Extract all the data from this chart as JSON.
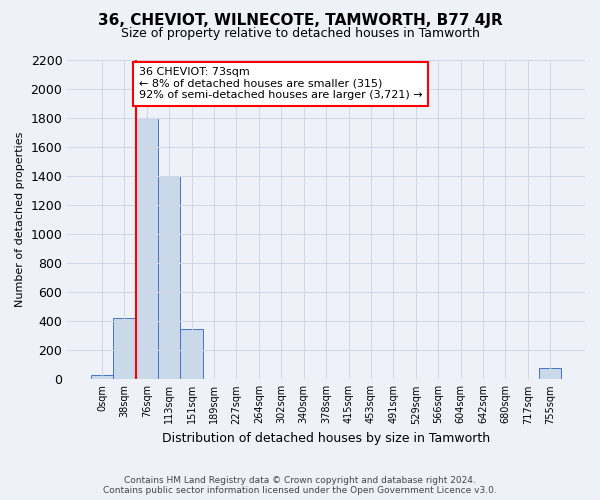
{
  "title": "36, CHEVIOT, WILNECOTE, TAMWORTH, B77 4JR",
  "subtitle": "Size of property relative to detached houses in Tamworth",
  "xlabel": "Distribution of detached houses by size in Tamworth",
  "ylabel": "Number of detached properties",
  "categories": [
    "0sqm",
    "38sqm",
    "76sqm",
    "113sqm",
    "151sqm",
    "189sqm",
    "227sqm",
    "264sqm",
    "302sqm",
    "340sqm",
    "378sqm",
    "415sqm",
    "453sqm",
    "491sqm",
    "529sqm",
    "566sqm",
    "604sqm",
    "642sqm",
    "680sqm",
    "717sqm",
    "755sqm"
  ],
  "values": [
    30,
    420,
    1800,
    1400,
    350,
    0,
    0,
    0,
    0,
    0,
    0,
    0,
    0,
    0,
    0,
    0,
    0,
    0,
    0,
    0,
    80
  ],
  "bar_color": "#c9d9ea",
  "bar_edge_color": "#4472c4",
  "red_line_x": 1.5,
  "annotation_line1": "36 CHEVIOT: 73sqm",
  "annotation_line2": "← 8% of detached houses are smaller (315)",
  "annotation_line3": "92% of semi-detached houses are larger (3,721) →",
  "annotation_box_color": "white",
  "annotation_box_edge_color": "red",
  "ylim": [
    0,
    2200
  ],
  "yticks": [
    0,
    200,
    400,
    600,
    800,
    1000,
    1200,
    1400,
    1600,
    1800,
    2000,
    2200
  ],
  "footer_text": "Contains HM Land Registry data © Crown copyright and database right 2024.\nContains public sector information licensed under the Open Government Licence v3.0.",
  "background_color": "#eef2f8",
  "grid_color": "#d0d8e8"
}
